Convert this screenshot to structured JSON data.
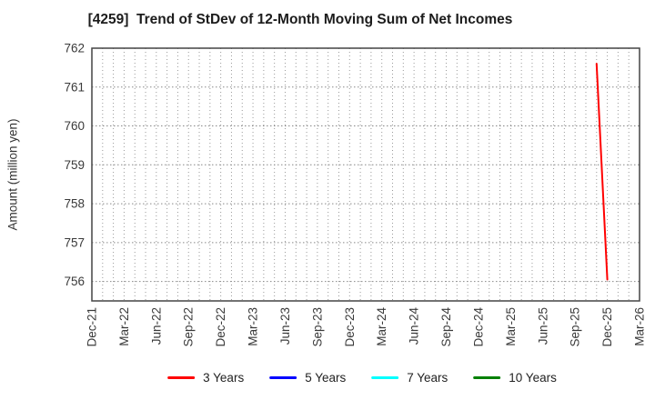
{
  "chart_data": {
    "type": "line",
    "title": "[4259]  Trend of StDev of 12-Month Moving Sum of Net Incomes",
    "ylabel": "Amount (million yen)",
    "xlabel": "",
    "x_start": "Dec-21",
    "x_end": "Mar-26",
    "x_tick_labels": [
      "Dec-21",
      "Mar-22",
      "Jun-22",
      "Sep-22",
      "Dec-22",
      "Mar-23",
      "Jun-23",
      "Sep-23",
      "Dec-23",
      "Mar-24",
      "Jun-24",
      "Sep-24",
      "Dec-24",
      "Mar-25",
      "Jun-25",
      "Sep-25",
      "Dec-25",
      "Mar-26"
    ],
    "x_minor_grid_interval_months": 1,
    "y_ticks": [
      756,
      757,
      758,
      759,
      760,
      761,
      762
    ],
    "ylim": [
      755.5,
      762
    ],
    "grid": true,
    "grid_style": "dotted",
    "legend_position": "bottom",
    "series": [
      {
        "name": "3 Years",
        "color": "#ff0000",
        "points": [
          {
            "x": "Nov-25",
            "y": 761.6
          },
          {
            "x": "Dec-25",
            "y": 756.05
          }
        ]
      },
      {
        "name": "5 Years",
        "color": "#0000ff",
        "points": []
      },
      {
        "name": "7 Years",
        "color": "#00ffff",
        "points": []
      },
      {
        "name": "10 Years",
        "color": "#008000",
        "points": []
      }
    ],
    "colors": {
      "grid": "#999999",
      "axis_border": "#444444",
      "tick_text": "#3a3a3a",
      "title_text": "#1c1c1c"
    }
  }
}
